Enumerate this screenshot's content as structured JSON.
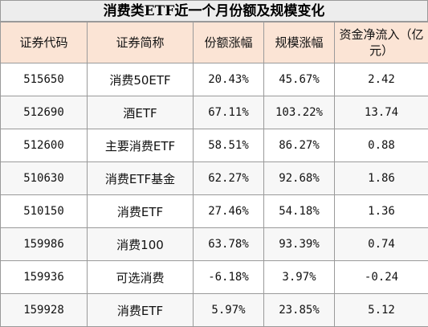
{
  "title": "消费类ETF近一个月份额及规模变化",
  "headers": [
    "证券代码",
    "证券简称",
    "份额涨幅",
    "规模涨幅",
    "资金净流入（亿元）"
  ],
  "rows": [
    {
      "code": "515650",
      "name": "消费50ETF",
      "share": "20.43%",
      "scale": "45.67%",
      "inflow": "2.42"
    },
    {
      "code": "512690",
      "name": "酒ETF",
      "share": "67.11%",
      "scale": "103.22%",
      "inflow": "13.74"
    },
    {
      "code": "512600",
      "name": "主要消费ETF",
      "share": "58.51%",
      "scale": "86.27%",
      "inflow": "0.88"
    },
    {
      "code": "510630",
      "name": "消费ETF基金",
      "share": "62.27%",
      "scale": "92.68%",
      "inflow": "1.86"
    },
    {
      "code": "510150",
      "name": "消费ETF",
      "share": "27.46%",
      "scale": "54.18%",
      "inflow": "1.36"
    },
    {
      "code": "159986",
      "name": "消费100",
      "share": "63.78%",
      "scale": "93.39%",
      "inflow": "0.74"
    },
    {
      "code": "159936",
      "name": "可选消费",
      "share": "-6.18%",
      "scale": "3.97%",
      "inflow": "-0.24"
    },
    {
      "code": "159928",
      "name": "消费ETF",
      "share": "5.97%",
      "scale": "23.85%",
      "inflow": "5.12"
    }
  ]
}
